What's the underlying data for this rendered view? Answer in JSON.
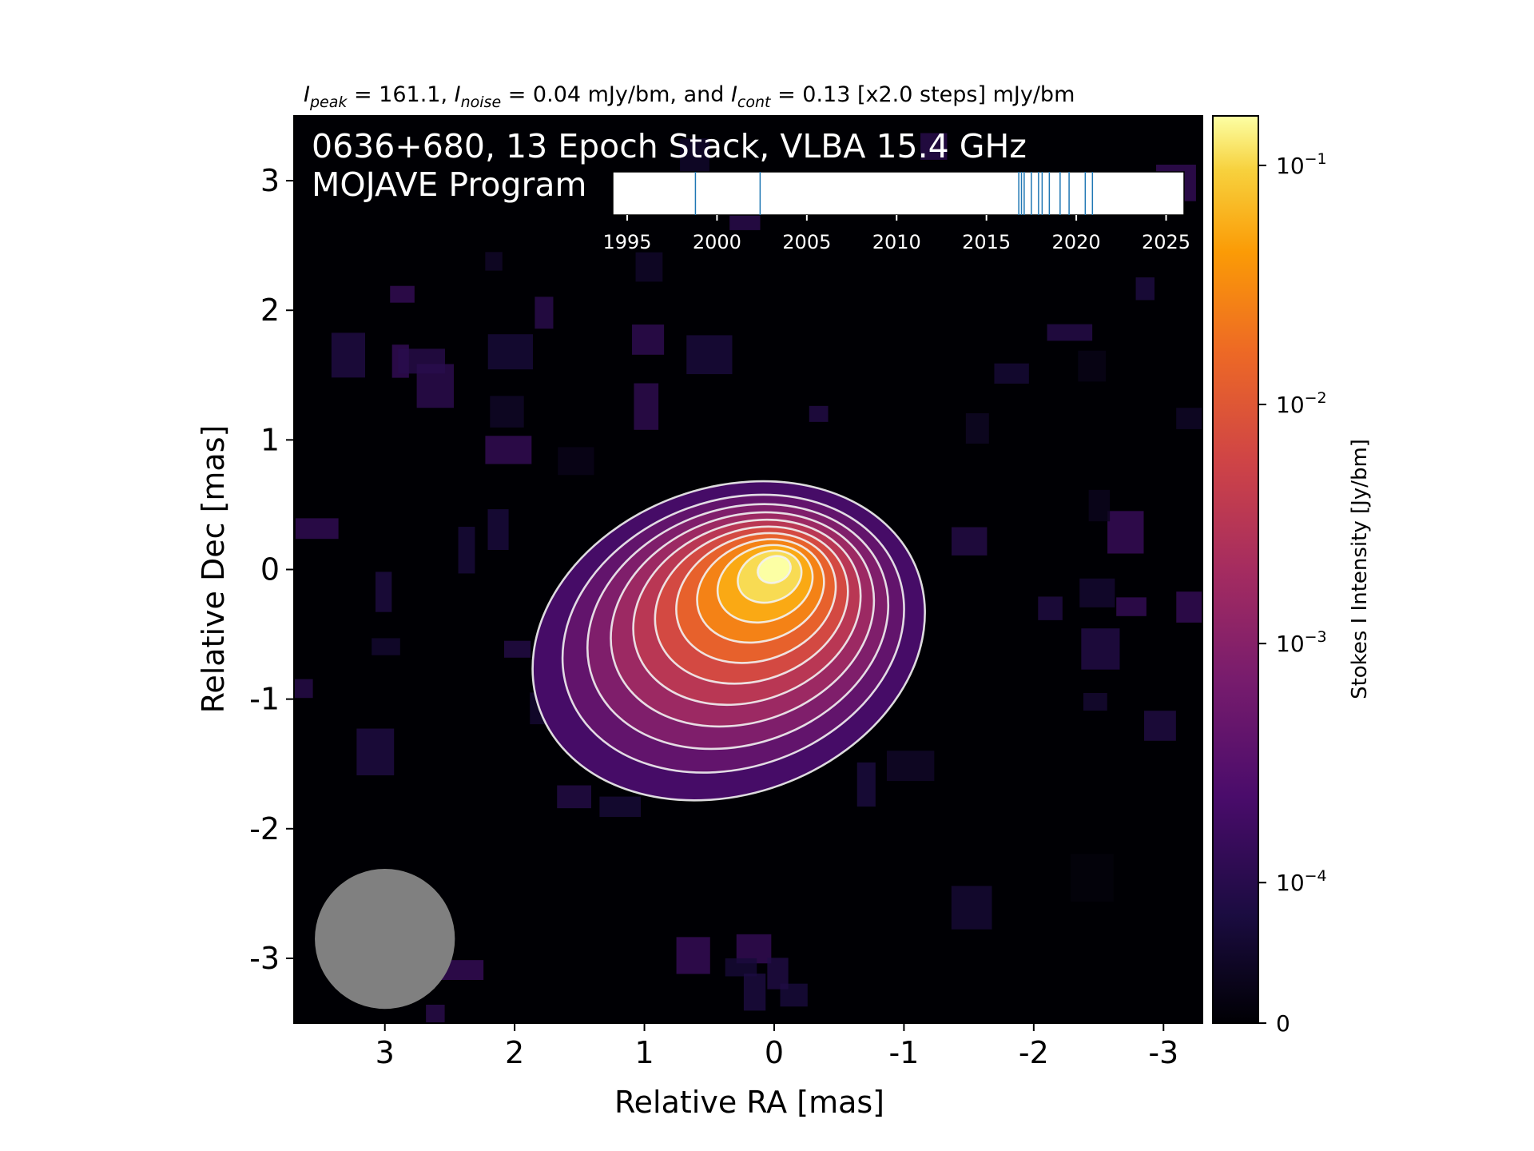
{
  "chart_data": {
    "type": "heatmap",
    "header_parts": {
      "peak_label": "I",
      "peak_sub": "peak",
      "peak_text": " = 161.1, ",
      "noise_label": "I",
      "noise_sub": "noise",
      "noise_text": " = 0.04 mJy/bm, and ",
      "cont_label": "I",
      "cont_sub": "cont",
      "cont_text": " = 0.13 [x2.0 steps] mJy/bm"
    },
    "title_line1": "0636+680, 13 Epoch Stack, VLBA 15.4 GHz",
    "title_line2": "MOJAVE Program",
    "xlabel": "Relative RA [mas]",
    "ylabel": "Relative Dec [mas]",
    "xlim": [
      3.7,
      -3.3
    ],
    "ylim": [
      -3.5,
      3.5
    ],
    "x_ticks": [
      "3",
      "2",
      "1",
      "0",
      "-1",
      "-2",
      "-3"
    ],
    "x_tick_values": [
      3,
      2,
      1,
      0,
      -1,
      -2,
      -3
    ],
    "y_ticks": [
      "3",
      "2",
      "1",
      "0",
      "-1",
      "-2",
      "-3"
    ],
    "y_tick_values": [
      3,
      2,
      1,
      0,
      -1,
      -2,
      -3
    ],
    "colorbar": {
      "label": "Stokes I Intensity [Jy/bm]",
      "scale": "log",
      "ticks": [
        {
          "base": "10",
          "exp": "−1",
          "value": 0.1
        },
        {
          "base": "10",
          "exp": "−2",
          "value": 0.01
        },
        {
          "base": "10",
          "exp": "−3",
          "value": 0.001
        },
        {
          "base": "10",
          "exp": "−4",
          "value": 0.0001
        },
        {
          "base": "0",
          "exp": "",
          "value": 0
        }
      ],
      "vmax": 0.1611,
      "colormap": "inferno"
    },
    "epochs": {
      "ticks": [
        "1995",
        "2000",
        "2005",
        "2010",
        "2015",
        "2020",
        "2025"
      ],
      "range": [
        1994.2,
        2026.0
      ],
      "dates": [
        1998.8,
        2002.4,
        2016.8,
        2016.95,
        2017.1,
        2017.5,
        2017.9,
        2018.1,
        2018.5,
        2019.1,
        2019.6,
        2020.5,
        2020.9
      ]
    },
    "source": {
      "peak_jy": 0.1611,
      "noise_jy": 4e-05,
      "contour_base_jy": 0.00013,
      "contour_factor": 2.0
    },
    "beam": {
      "ra_center": 3.0,
      "dec_center": -2.85,
      "major_mas": 0.65,
      "minor_mas": 0.65
    },
    "colors": {
      "plot_background": "#000004",
      "contour": "#f2f2f2",
      "epoch_line": "#1f77b4",
      "beam": "#808080",
      "annotation_text": "#ffffff"
    }
  }
}
